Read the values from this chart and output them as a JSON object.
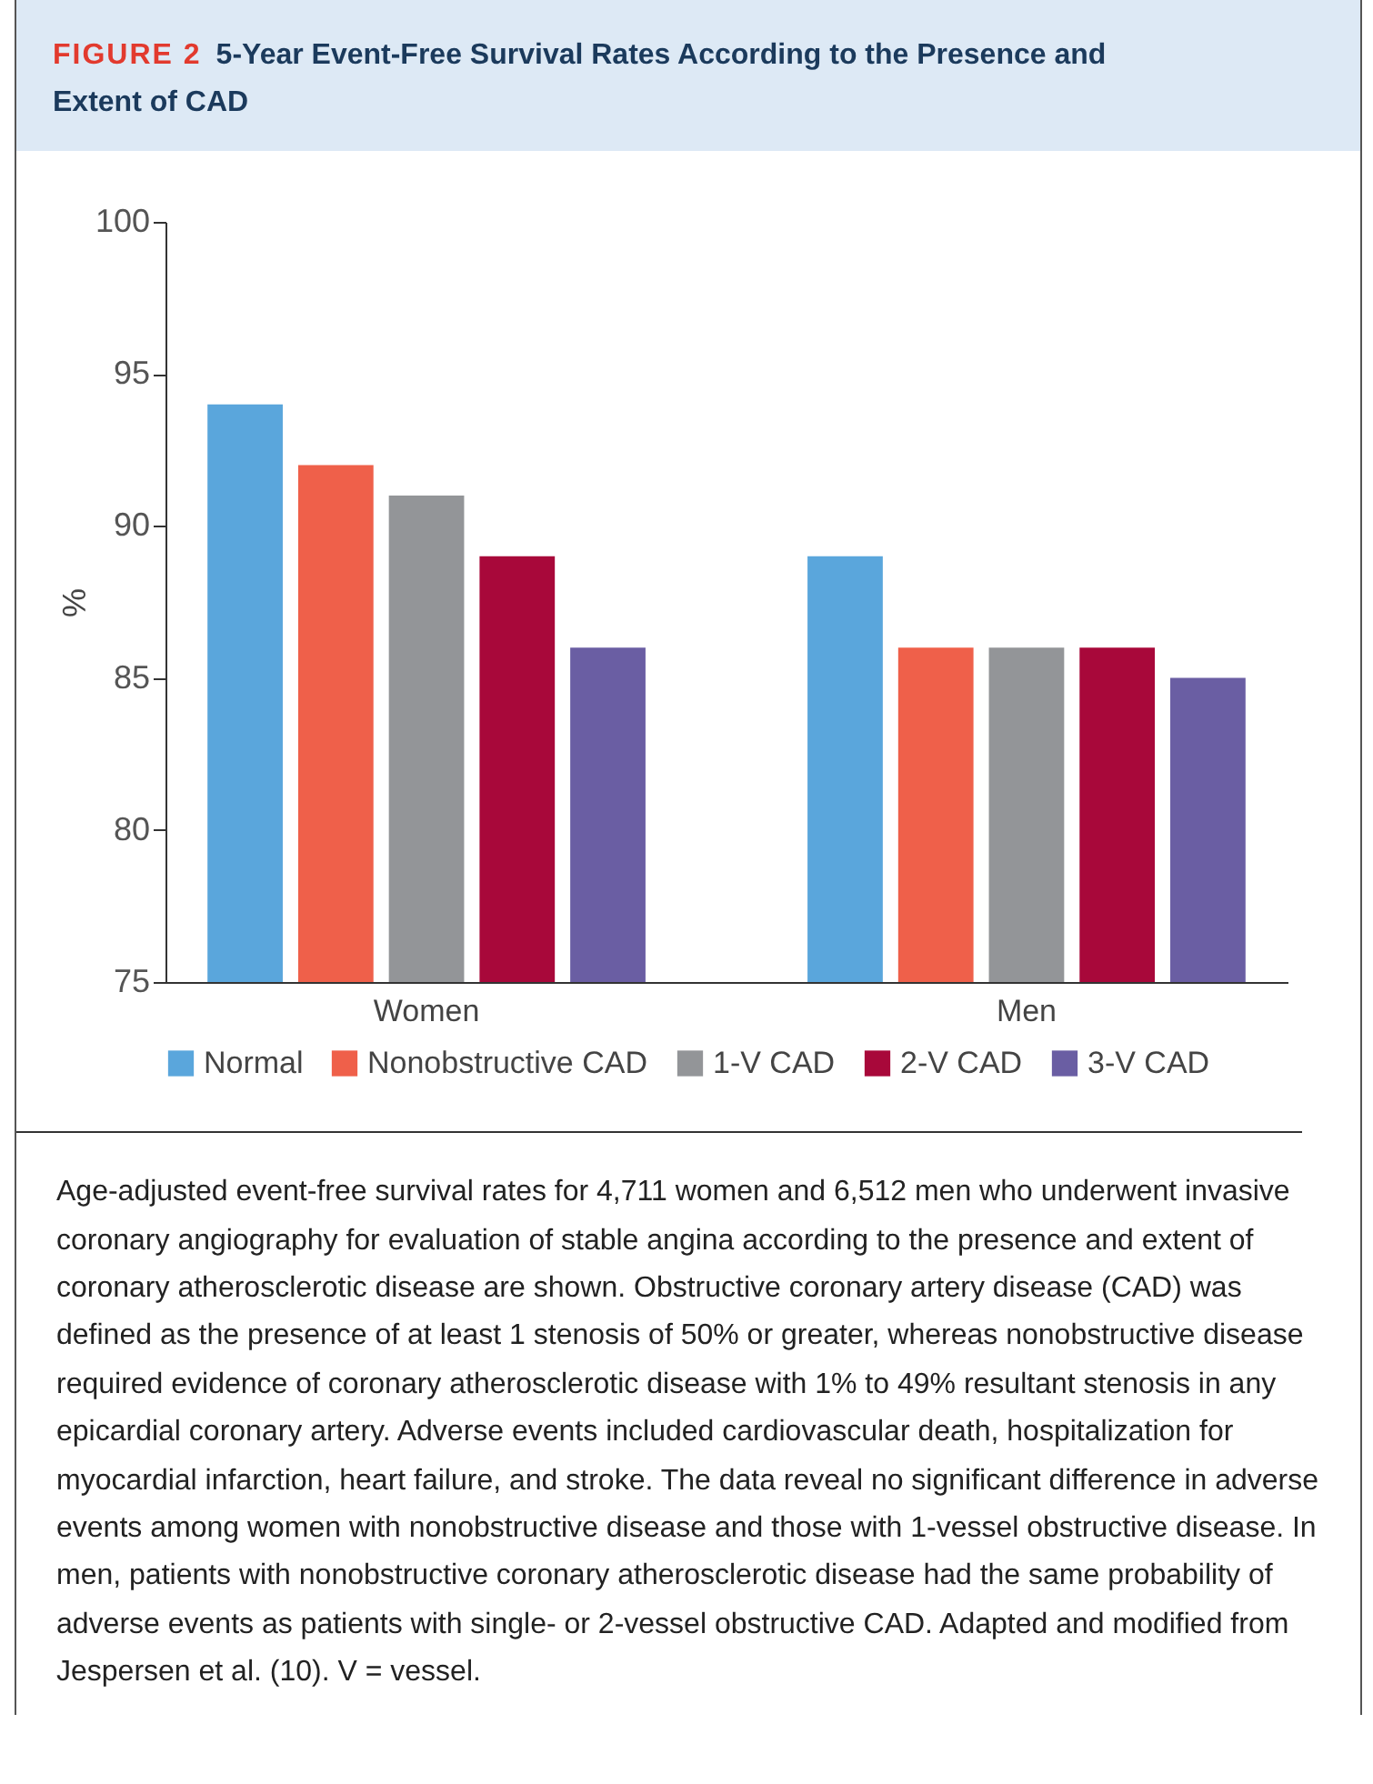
{
  "chart_data": {
    "type": "bar",
    "title": "FIGURE 2",
    "subtitle": "5-Year Event-Free Survival Rates According to the Presence and Extent of CAD",
    "ylabel": "%",
    "categories": [
      "Women",
      "Men"
    ],
    "series": [
      {
        "name": "Normal",
        "color": "#5aa6dc",
        "values": [
          94,
          89
        ]
      },
      {
        "name": "Nonobstructive CAD",
        "color": "#ef604a",
        "values": [
          92,
          86
        ]
      },
      {
        "name": "1-V CAD",
        "color": "#939598",
        "values": [
          91,
          86
        ]
      },
      {
        "name": "2-V CAD",
        "color": "#a8083a",
        "values": [
          89,
          86
        ]
      },
      {
        "name": "3-V CAD",
        "color": "#6a5ea3",
        "values": [
          86,
          85
        ]
      }
    ],
    "ylim": [
      75,
      100
    ],
    "yticks": [
      75,
      80,
      85,
      90,
      95,
      100
    ],
    "grid": false,
    "legend": "bottom",
    "annotations": [
      "Age-adjusted event-free survival rates for 4,711 women and 6,512 men who underwent invasive coronary angiography for evaluation of stable angina according to the presence and extent of coronary atherosclerotic disease are shown. Obstructive coronary artery disease (CAD) was defined as the presence of at least 1 stenosis of 50% or greater, whereas nonobstructive disease required evidence of coronary atherosclerotic disease with 1% to 49% resultant stenosis in any epicardial coronary artery. Adverse events included cardiovascular death, hospitalization for myocardial infarction, heart failure, and stroke. The data reveal no significant difference in adverse events among women with nonobstructive disease and those with 1-vessel obstructive disease. In men, patients with nonobstructive coronary atherosclerotic disease had the same probability of adverse events as patients with single- or 2-vessel obstructive CAD. Adapted and modified from Jespersen et al. (10). V = vessel."
    ]
  }
}
